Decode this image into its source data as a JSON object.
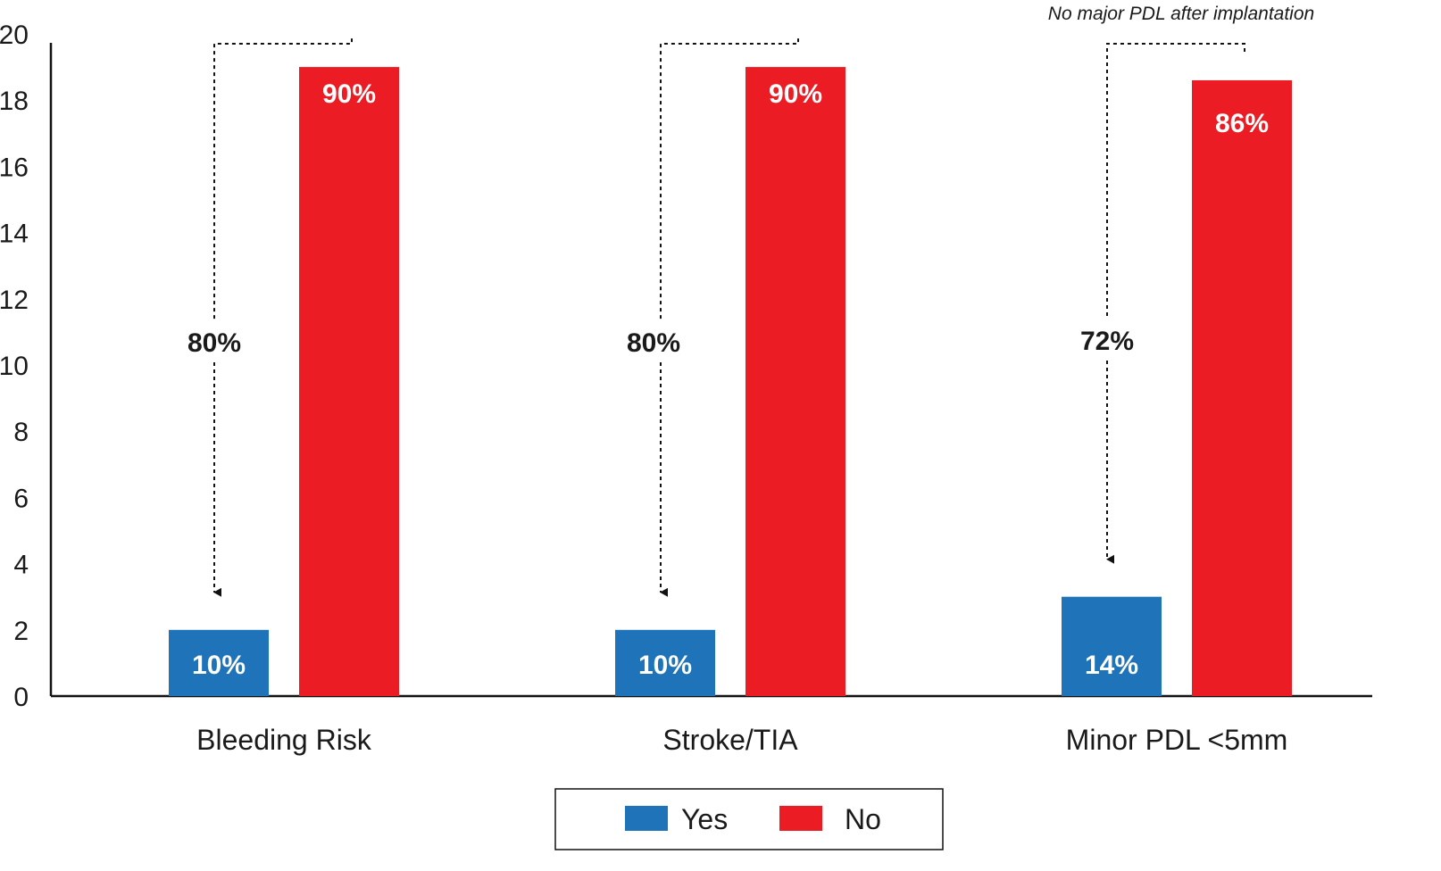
{
  "chart_data": {
    "type": "bar",
    "title": "",
    "xlabel": "",
    "ylabel": "",
    "ylim": [
      0,
      20
    ],
    "yticks": [
      0,
      2,
      4,
      6,
      8,
      10,
      12,
      14,
      16,
      18,
      20
    ],
    "grid": false,
    "categories": [
      "Bleeding Risk",
      "Stroke/TIA",
      "Minor PDL <5mm"
    ],
    "series": [
      {
        "name": "Yes",
        "color": "#1f73b8",
        "values": [
          2,
          2,
          3
        ],
        "labels": [
          "10%",
          "10%",
          "14%"
        ]
      },
      {
        "name": "No",
        "color": "#eb1c24",
        "values": [
          19,
          19,
          18.6
        ],
        "labels": [
          "90%",
          "90%",
          "86%"
        ]
      }
    ],
    "annotations": [
      {
        "category": "Bleeding Risk",
        "text": "80%"
      },
      {
        "category": "Stroke/TIA",
        "text": "80%"
      },
      {
        "category": "Minor PDL <5mm",
        "text": "72%"
      }
    ],
    "note": "No major PDL after implantation",
    "legend": {
      "placement": "bottom-center",
      "entries": [
        "Yes",
        "No"
      ]
    }
  }
}
